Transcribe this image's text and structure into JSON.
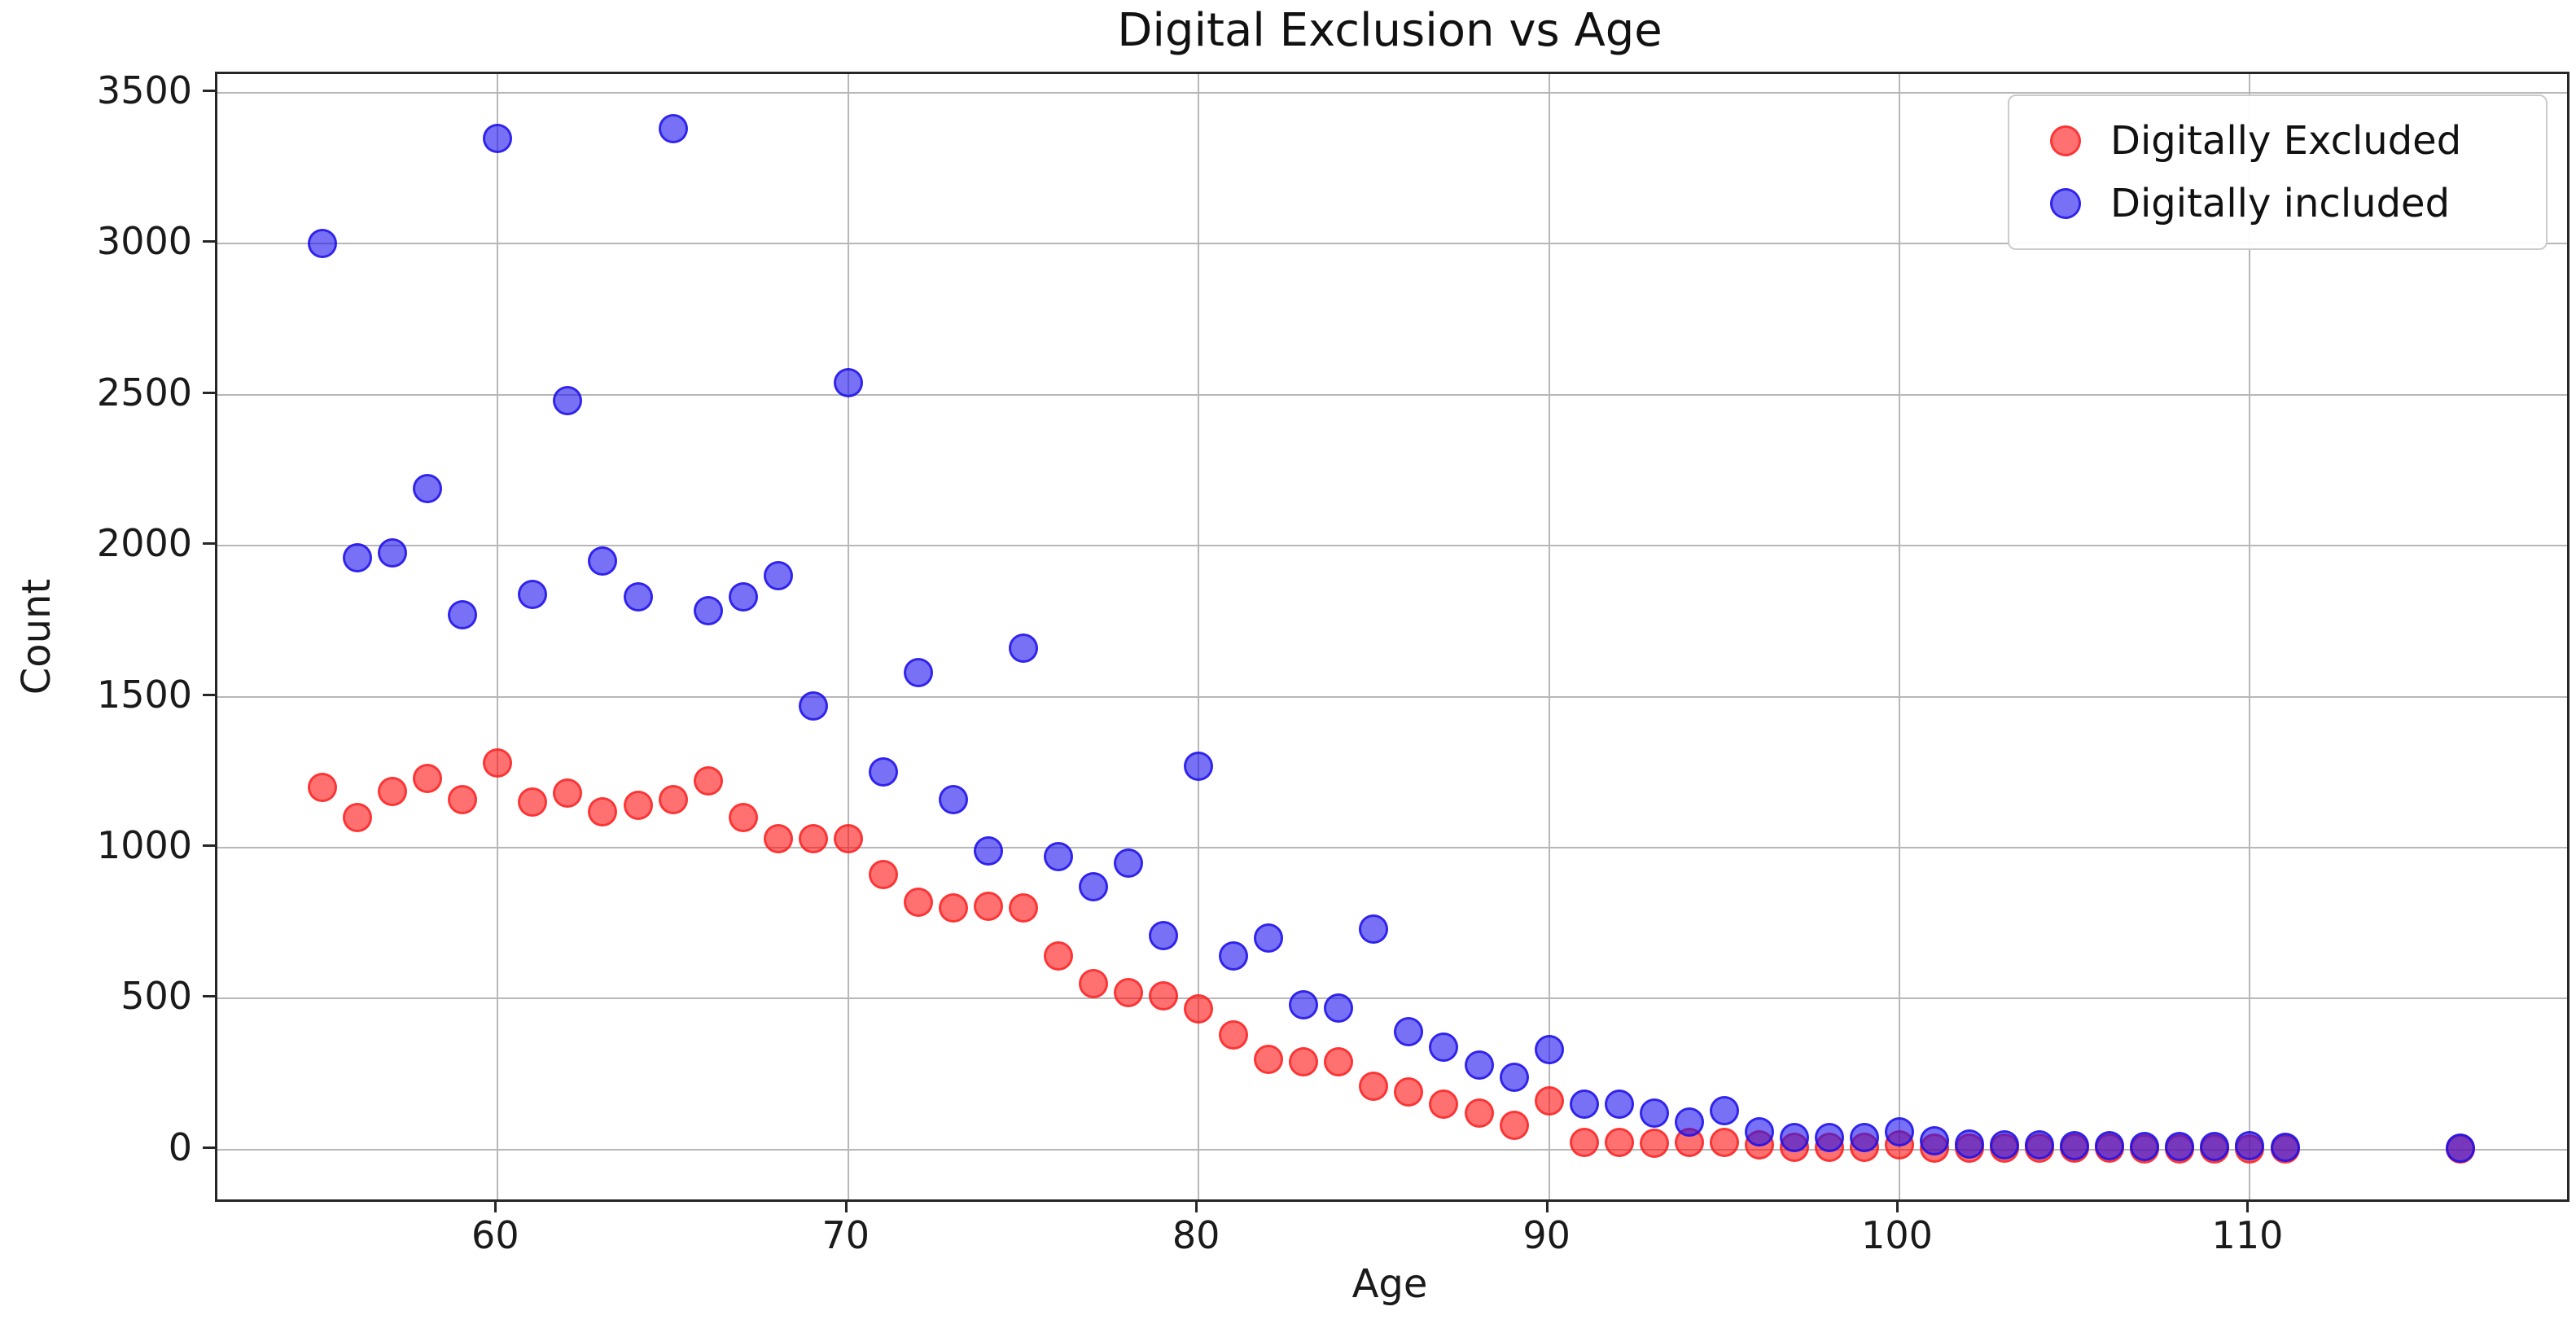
{
  "chart_data": {
    "type": "scatter",
    "title": "Digital Exclusion vs Age",
    "xlabel": "Age",
    "ylabel": "Count",
    "grid": true,
    "legend_position": "upper right",
    "xlim": [
      52,
      119.05
    ],
    "ylim": [
      -165,
      3562
    ],
    "xticks": [
      60,
      70,
      80,
      90,
      100,
      110
    ],
    "yticks": [
      0,
      500,
      1000,
      1500,
      2000,
      2500,
      3000,
      3500
    ],
    "x": [
      55,
      56,
      57,
      58,
      59,
      60,
      61,
      62,
      63,
      64,
      65,
      66,
      67,
      68,
      69,
      70,
      71,
      72,
      73,
      74,
      75,
      76,
      77,
      78,
      79,
      80,
      81,
      82,
      83,
      84,
      85,
      86,
      87,
      88,
      89,
      90,
      91,
      92,
      93,
      94,
      95,
      96,
      97,
      98,
      99,
      100,
      101,
      102,
      103,
      104,
      105,
      106,
      107,
      108,
      109,
      110,
      111,
      116
    ],
    "series": [
      {
        "name": "Digitally Excluded",
        "color": "#fa4b4b",
        "values": [
          1200,
          1100,
          1185,
          1230,
          1160,
          1280,
          1150,
          1180,
          1120,
          1140,
          1160,
          1220,
          1100,
          1030,
          1030,
          1030,
          910,
          820,
          800,
          805,
          800,
          640,
          550,
          520,
          510,
          465,
          380,
          300,
          290,
          290,
          210,
          190,
          150,
          120,
          80,
          160,
          25,
          25,
          20,
          25,
          25,
          15,
          8,
          8,
          8,
          15,
          6,
          5,
          4,
          4,
          4,
          4,
          3,
          3,
          3,
          3,
          3,
          2
        ]
      },
      {
        "name": "Digitally included",
        "color": "#4a42e8",
        "values": [
          3000,
          1960,
          1975,
          2190,
          1770,
          3350,
          1840,
          2480,
          1950,
          1830,
          3380,
          1785,
          1830,
          1900,
          1470,
          2540,
          1250,
          1580,
          1160,
          990,
          1660,
          970,
          870,
          950,
          710,
          1270,
          640,
          700,
          480,
          470,
          730,
          390,
          340,
          280,
          240,
          330,
          150,
          150,
          120,
          90,
          130,
          60,
          40,
          40,
          40,
          60,
          30,
          18,
          15,
          15,
          12,
          12,
          10,
          10,
          10,
          12,
          8,
          5
        ]
      }
    ]
  }
}
